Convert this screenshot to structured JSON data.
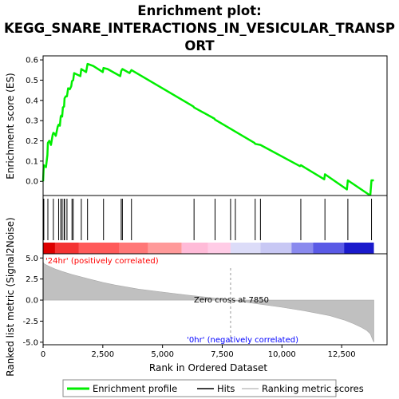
{
  "chart_data": {
    "type": "line",
    "title_lines": [
      "Enrichment plot:",
      "KEGG_SNARE_INTERACTIONS_IN_VESICULAR_TRANSP",
      "ORT"
    ],
    "es_panel": {
      "ylabel": "Enrichment score (ES)",
      "ylim": [
        -0.07,
        0.62
      ],
      "yticks": [
        0.0,
        0.1,
        0.2,
        0.3,
        0.4,
        0.5,
        0.6
      ],
      "ytick_labels": [
        "0.0",
        "0.1",
        "0.2",
        "0.3",
        "0.4",
        "0.5",
        "0.6"
      ],
      "line_color": "#00ee00",
      "x": [
        0,
        30,
        120,
        180,
        200,
        260,
        330,
        400,
        430,
        480,
        530,
        610,
        650,
        700,
        740,
        760,
        800,
        830,
        880,
        900,
        950,
        1000,
        1050,
        1120,
        1180,
        1210,
        1260,
        1300,
        1560,
        1600,
        1800,
        1860,
        2100,
        2500,
        2530,
        2700,
        3230,
        3270,
        3320,
        3620,
        3700,
        6290,
        6320,
        7170,
        7200,
        8850,
        8880,
        9100,
        10750,
        10790,
        11770,
        11800,
        12720,
        12760,
        13700,
        13750,
        13850
      ],
      "y": [
        0.0,
        0.08,
        0.07,
        0.13,
        0.19,
        0.2,
        0.18,
        0.23,
        0.24,
        0.235,
        0.225,
        0.27,
        0.28,
        0.275,
        0.32,
        0.325,
        0.32,
        0.365,
        0.37,
        0.41,
        0.42,
        0.42,
        0.46,
        0.455,
        0.47,
        0.495,
        0.5,
        0.535,
        0.52,
        0.555,
        0.54,
        0.58,
        0.57,
        0.54,
        0.56,
        0.555,
        0.52,
        0.545,
        0.555,
        0.535,
        0.55,
        0.37,
        0.365,
        0.31,
        0.305,
        0.19,
        0.185,
        0.18,
        0.075,
        0.08,
        0.01,
        0.035,
        -0.04,
        0.005,
        -0.07,
        0.005,
        0.005
      ]
    },
    "hits": [
      30,
      200,
      430,
      650,
      740,
      800,
      880,
      900,
      1000,
      1210,
      1260,
      1600,
      1860,
      2530,
      3270,
      3320,
      3700,
      6320,
      7200,
      7850,
      8050,
      8880,
      9100,
      10790,
      11800,
      12760,
      13750
    ],
    "metric_panel": {
      "ylabel": "Ranked list metric (Signal2Noise)",
      "ylim": [
        -5.3,
        5.5
      ],
      "yticks": [
        5.0,
        2.5,
        0.0,
        -2.5,
        -5.0
      ],
      "ytick_labels": [
        "5.0",
        "2.5",
        "0.0",
        "-2.5",
        "-5.0"
      ],
      "x": [
        0,
        50,
        150,
        300,
        500,
        800,
        1200,
        1600,
        2000,
        2500,
        3000,
        3500,
        4000,
        5000,
        6000,
        7000,
        7850,
        8500,
        9000,
        10000,
        11000,
        12000,
        12600,
        13000,
        13300,
        13550,
        13700,
        13800,
        13850
      ],
      "y": [
        4.5,
        4.3,
        4.15,
        3.95,
        3.7,
        3.4,
        3.05,
        2.75,
        2.45,
        2.1,
        1.8,
        1.55,
        1.3,
        0.95,
        0.6,
        0.3,
        0.0,
        -0.25,
        -0.45,
        -0.85,
        -1.3,
        -1.85,
        -2.35,
        -2.8,
        -3.2,
        -3.6,
        -4.0,
        -4.7,
        -5.0
      ],
      "fill_color": "#c0c0c0",
      "label_positive": "'24hr' (positively correlated)",
      "label_negative": "'0hr' (negatively correlated)",
      "zero_cross_label": "Zero cross at 7850",
      "zero_cross": 7850,
      "positive_color": "#ff0000",
      "negative_color": "#0000ff"
    },
    "xlabel": "Rank in Ordered Dataset",
    "xlim": [
      0,
      14400
    ],
    "xticks": [
      0,
      2500,
      5000,
      7500,
      10000,
      12500
    ],
    "xtick_labels": [
      "0",
      "2,500",
      "5,000",
      "7,500",
      "10,000",
      "12,500"
    ],
    "heat_segments": [
      {
        "from": 0,
        "to": 500,
        "color": "#dd0000"
      },
      {
        "from": 500,
        "to": 1500,
        "color": "#f43333"
      },
      {
        "from": 1500,
        "to": 3200,
        "color": "#ff5a5a"
      },
      {
        "from": 3200,
        "to": 4400,
        "color": "#ff7777"
      },
      {
        "from": 4400,
        "to": 5800,
        "color": "#ff9a9a"
      },
      {
        "from": 5800,
        "to": 6900,
        "color": "#ffbbd8"
      },
      {
        "from": 6900,
        "to": 7850,
        "color": "#ffcce6"
      },
      {
        "from": 7850,
        "to": 9100,
        "color": "#dcdcf8"
      },
      {
        "from": 9100,
        "to": 10400,
        "color": "#c8c8f4"
      },
      {
        "from": 10400,
        "to": 11300,
        "color": "#8a8aee"
      },
      {
        "from": 11300,
        "to": 12600,
        "color": "#5a5ae6"
      },
      {
        "from": 12600,
        "to": 13850,
        "color": "#1a1acc"
      }
    ],
    "legend": [
      {
        "label": "Enrichment profile",
        "color": "#00ee00",
        "kind": "thick-line"
      },
      {
        "label": "Hits",
        "color": "#000000",
        "kind": "line"
      },
      {
        "label": "Ranking metric scores",
        "color": "#c0c0c0",
        "kind": "line"
      }
    ]
  }
}
